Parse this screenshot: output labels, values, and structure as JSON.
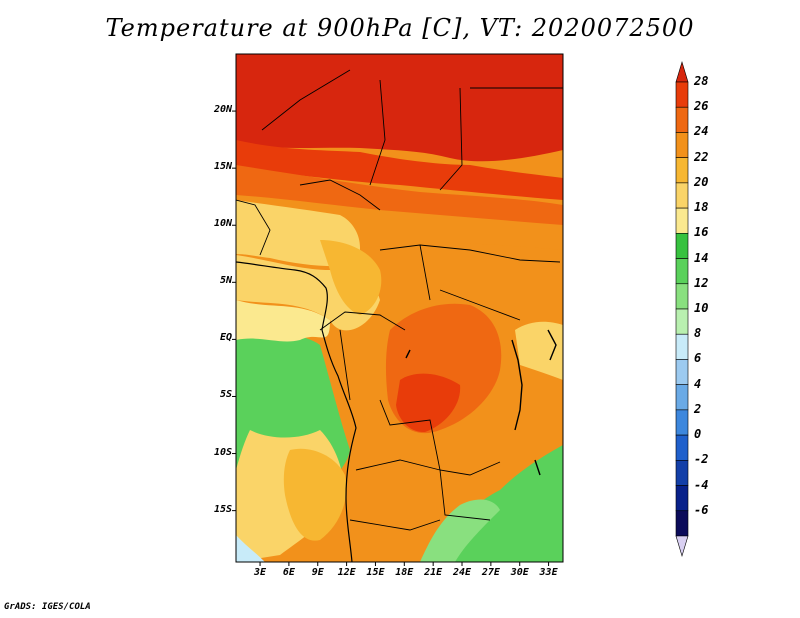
{
  "chart_data": {
    "type": "heatmap",
    "title": "Temperature at 900hPa [C], VT: 2020072500",
    "xlabel": "",
    "ylabel": "",
    "x_ticks": [
      "3E",
      "6E",
      "9E",
      "12E",
      "15E",
      "18E",
      "21E",
      "24E",
      "27E",
      "30E",
      "33E"
    ],
    "y_ticks": [
      "20N",
      "15N",
      "10N",
      "5N",
      "EQ",
      "5S",
      "10S",
      "15S"
    ],
    "x_range": [
      0.5,
      34.5
    ],
    "y_range": [
      -19.5,
      25
    ],
    "colorbar": {
      "labels": [
        "28",
        "26",
        "24",
        "22",
        "20",
        "18",
        "16",
        "14",
        "12",
        "10",
        "8",
        "6",
        "4",
        "2",
        "0",
        "-2",
        "-4",
        "-6"
      ],
      "colors": [
        "#d7260e",
        "#e83c0a",
        "#ef6812",
        "#f2911b",
        "#f7b732",
        "#fad468",
        "#fbe98f",
        "#37c23f",
        "#5ad15b",
        "#89e07f",
        "#b9f0b0",
        "#c8ebf9",
        "#9ccaf0",
        "#6aaae6",
        "#3d87dd",
        "#1f60cc",
        "#133fa8",
        "#08218a",
        "#0b0b5a",
        "#d9d0f2"
      ]
    }
  },
  "footer": {
    "credit": "GrADS: IGES/COLA"
  }
}
